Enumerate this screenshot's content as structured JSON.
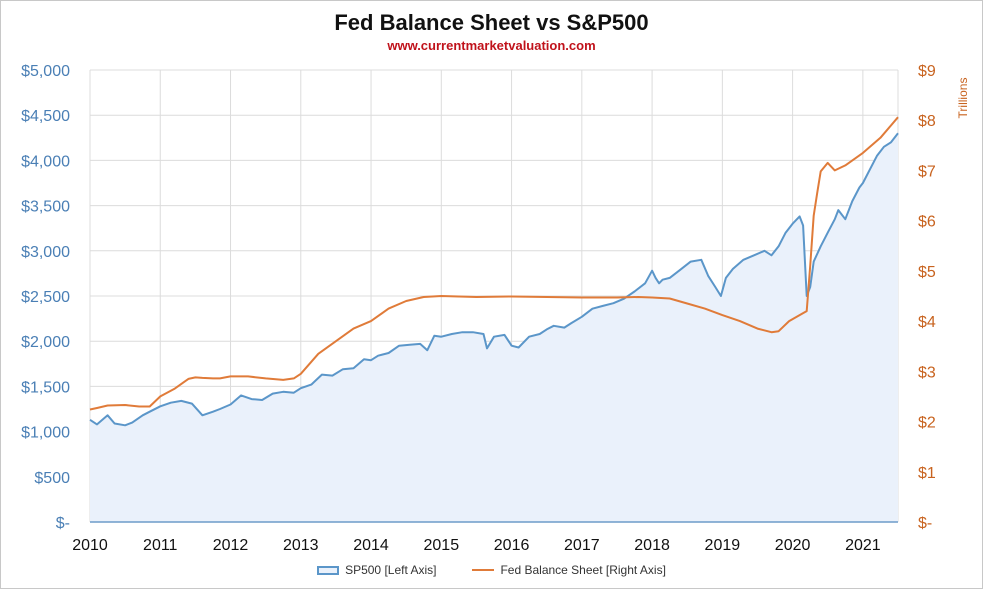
{
  "chart_data": {
    "type": "line",
    "title": "Fed Balance Sheet vs S&P500",
    "subtitle": "www.currentmarketvaluation.com",
    "x_ticks": [
      "2010",
      "2011",
      "2012",
      "2013",
      "2014",
      "2015",
      "2016",
      "2017",
      "2018",
      "2019",
      "2020",
      "2021"
    ],
    "xlim": [
      2010.0,
      2021.5
    ],
    "left_axis": {
      "ylim": [
        0,
        5000
      ],
      "tick_labels": [
        "$-",
        "$500",
        "$1,000",
        "$1,500",
        "$2,000",
        "$2,500",
        "$3,000",
        "$3,500",
        "$4,000",
        "$4,500",
        "$5,000"
      ],
      "color": "#4a7fb5"
    },
    "right_axis": {
      "label": "Trillions",
      "ylim": [
        0,
        9
      ],
      "tick_labels": [
        "$-",
        "$1",
        "$2",
        "$3",
        "$4",
        "$5",
        "$6",
        "$7",
        "$8",
        "$9"
      ],
      "color": "#c8631f"
    },
    "grid": true,
    "legend_position": "bottom",
    "series": [
      {
        "name": "SP500 [Left Axis]",
        "axis": "left",
        "style": "area",
        "color": "#5b96c9",
        "fill": "#eaf1fb",
        "x": [
          2010.0,
          2010.1,
          2010.25,
          2010.35,
          2010.5,
          2010.6,
          2010.75,
          2010.85,
          2011.0,
          2011.15,
          2011.3,
          2011.45,
          2011.6,
          2011.75,
          2011.85,
          2012.0,
          2012.15,
          2012.3,
          2012.45,
          2012.6,
          2012.75,
          2012.9,
          2013.0,
          2013.15,
          2013.3,
          2013.45,
          2013.6,
          2013.75,
          2013.9,
          2014.0,
          2014.1,
          2014.25,
          2014.4,
          2014.55,
          2014.7,
          2014.8,
          2014.9,
          2015.0,
          2015.15,
          2015.3,
          2015.45,
          2015.6,
          2015.65,
          2015.75,
          2015.9,
          2016.0,
          2016.1,
          2016.25,
          2016.4,
          2016.5,
          2016.6,
          2016.75,
          2016.85,
          2017.0,
          2017.15,
          2017.3,
          2017.45,
          2017.6,
          2017.75,
          2017.9,
          2018.0,
          2018.05,
          2018.1,
          2018.15,
          2018.25,
          2018.4,
          2018.55,
          2018.7,
          2018.8,
          2018.9,
          2018.98,
          2019.05,
          2019.15,
          2019.3,
          2019.45,
          2019.6,
          2019.7,
          2019.8,
          2019.9,
          2020.0,
          2020.1,
          2020.15,
          2020.2,
          2020.25,
          2020.3,
          2020.4,
          2020.5,
          2020.6,
          2020.65,
          2020.75,
          2020.85,
          2020.95,
          2021.0,
          2021.1,
          2021.2,
          2021.3,
          2021.4,
          2021.5
        ],
        "values": [
          1130,
          1080,
          1180,
          1090,
          1070,
          1100,
          1180,
          1220,
          1280,
          1320,
          1340,
          1310,
          1180,
          1220,
          1250,
          1300,
          1400,
          1360,
          1350,
          1420,
          1440,
          1430,
          1480,
          1520,
          1630,
          1620,
          1690,
          1700,
          1800,
          1790,
          1840,
          1870,
          1950,
          1960,
          1970,
          1900,
          2060,
          2050,
          2080,
          2100,
          2100,
          2080,
          1920,
          2050,
          2070,
          1950,
          1930,
          2050,
          2080,
          2130,
          2170,
          2150,
          2200,
          2270,
          2360,
          2390,
          2420,
          2470,
          2550,
          2640,
          2780,
          2700,
          2640,
          2680,
          2700,
          2790,
          2880,
          2900,
          2720,
          2600,
          2500,
          2700,
          2800,
          2900,
          2950,
          3000,
          2950,
          3050,
          3200,
          3300,
          3380,
          3280,
          2500,
          2600,
          2880,
          3050,
          3200,
          3350,
          3450,
          3350,
          3550,
          3700,
          3750,
          3900,
          4050,
          4150,
          4200,
          4300
        ]
      },
      {
        "name": "Fed Balance Sheet [Right Axis]",
        "axis": "right",
        "style": "line",
        "color": "#e07b39",
        "x": [
          2010.0,
          2010.1,
          2010.25,
          2010.5,
          2010.7,
          2010.85,
          2011.0,
          2011.2,
          2011.4,
          2011.5,
          2011.6,
          2011.75,
          2011.85,
          2012.0,
          2012.25,
          2012.5,
          2012.75,
          2012.9,
          2013.0,
          2013.25,
          2013.5,
          2013.75,
          2014.0,
          2014.25,
          2014.5,
          2014.75,
          2015.0,
          2015.5,
          2016.0,
          2016.5,
          2017.0,
          2017.5,
          2017.8,
          2018.0,
          2018.25,
          2018.5,
          2018.75,
          2019.0,
          2019.25,
          2019.5,
          2019.7,
          2019.8,
          2019.95,
          2020.1,
          2020.15,
          2020.2,
          2020.25,
          2020.3,
          2020.35,
          2020.4,
          2020.5,
          2020.6,
          2020.75,
          2021.0,
          2021.25,
          2021.5
        ],
        "values": [
          2.24,
          2.27,
          2.32,
          2.33,
          2.3,
          2.3,
          2.5,
          2.65,
          2.85,
          2.88,
          2.87,
          2.86,
          2.86,
          2.9,
          2.9,
          2.86,
          2.83,
          2.86,
          2.95,
          3.35,
          3.6,
          3.85,
          4.0,
          4.25,
          4.4,
          4.48,
          4.5,
          4.48,
          4.49,
          4.48,
          4.47,
          4.47,
          4.48,
          4.47,
          4.45,
          4.35,
          4.25,
          4.12,
          4.0,
          3.85,
          3.78,
          3.8,
          4.0,
          4.12,
          4.16,
          4.2,
          5.1,
          6.1,
          6.55,
          6.98,
          7.15,
          7.0,
          7.1,
          7.35,
          7.65,
          8.06
        ]
      }
    ]
  }
}
